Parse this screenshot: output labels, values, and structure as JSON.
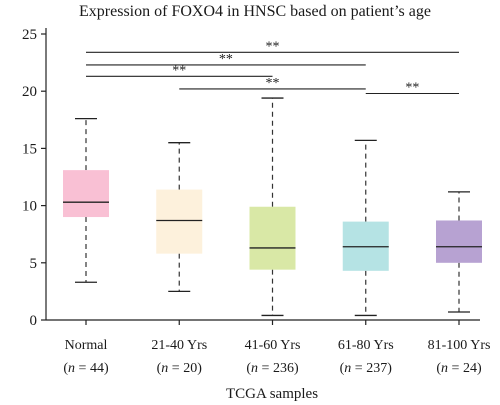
{
  "chart_data": {
    "type": "box",
    "title": "Expression of FOXO4 in HNSC based on patient’s age",
    "xlabel": "TCGA samples",
    "ylabel": "",
    "ylim": [
      0,
      25
    ],
    "yticks": [
      0,
      5,
      10,
      15,
      20,
      25
    ],
    "grid": false,
    "categories": [
      {
        "label": "Normal",
        "n_label": "n",
        "n_value": "44"
      },
      {
        "label": "21-40 Yrs",
        "n_label": "n",
        "n_value": "20"
      },
      {
        "label": "41-60 Yrs",
        "n_label": "n",
        "n_value": "236"
      },
      {
        "label": "61-80 Yrs",
        "n_label": "n",
        "n_value": "237"
      },
      {
        "label": "81-100 Yrs",
        "n_label": "n",
        "n_value": "24"
      }
    ],
    "boxes": [
      {
        "min": 3.3,
        "q1": 9.0,
        "median": 10.3,
        "q3": 13.1,
        "max": 17.6,
        "color": "#f9c0d4"
      },
      {
        "min": 2.5,
        "q1": 5.8,
        "median": 8.7,
        "q3": 11.4,
        "max": 15.5,
        "color": "#fdf1dc"
      },
      {
        "min": 0.4,
        "q1": 4.4,
        "median": 6.3,
        "q3": 9.9,
        "max": 19.4,
        "color": "#d9e8a6"
      },
      {
        "min": 0.4,
        "q1": 4.3,
        "median": 6.4,
        "q3": 8.6,
        "max": 15.7,
        "color": "#b5e3e4"
      },
      {
        "min": 0.7,
        "q1": 5.0,
        "median": 6.4,
        "q3": 8.7,
        "max": 11.2,
        "color": "#b7a2d2"
      }
    ],
    "significance": [
      {
        "from": 0,
        "to": 4,
        "y": 23.4,
        "label": "**"
      },
      {
        "from": 0,
        "to": 3,
        "y": 22.3,
        "label": "**"
      },
      {
        "from": 0,
        "to": 2,
        "y": 21.3,
        "label": "**"
      },
      {
        "from": 1,
        "to": 3,
        "y": 20.2,
        "label": "**"
      },
      {
        "from": 3,
        "to": 4,
        "y": 19.8,
        "label": "**"
      }
    ]
  }
}
